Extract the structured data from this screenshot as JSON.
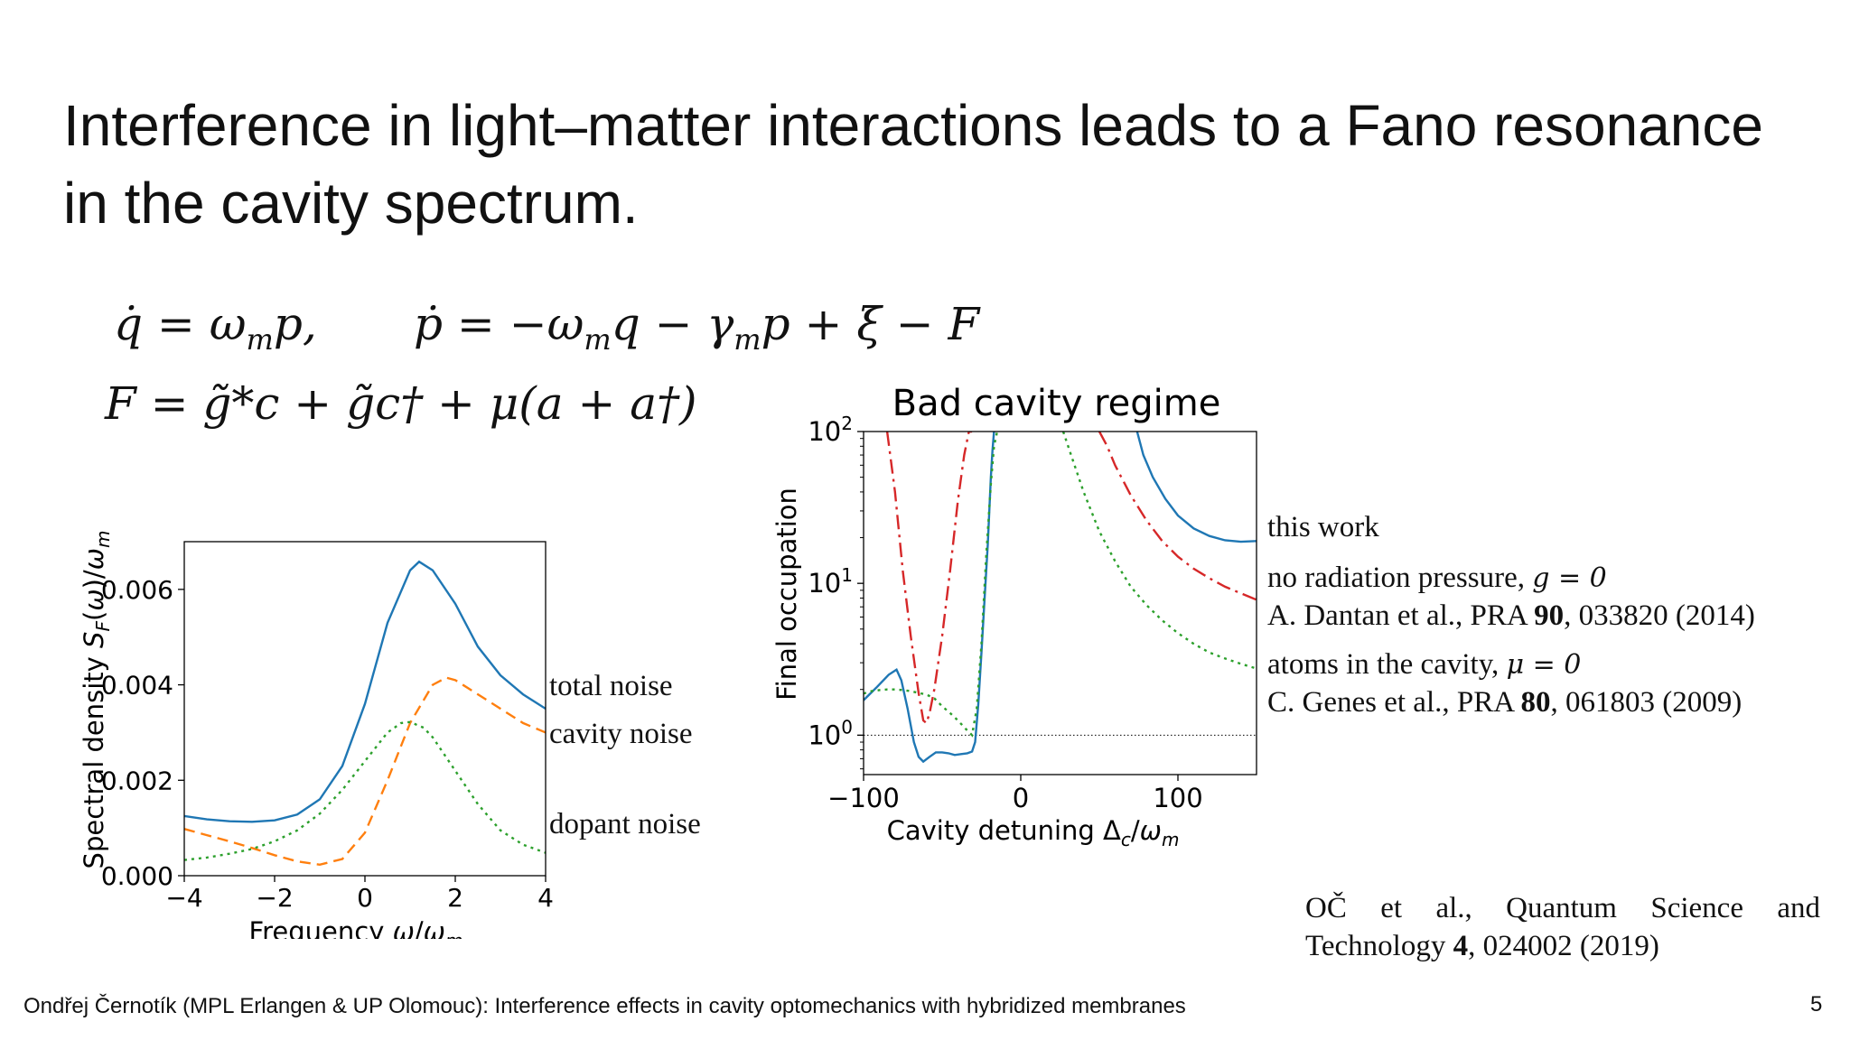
{
  "slide": {
    "title": "Interference in light–matter interactions leads to a Fano resonance in the cavity spectrum.",
    "equation_1a": "q̇ = ω",
    "equation_1a_sub": "m",
    "equation_1a_tail": "p,",
    "equation_1b": "ṗ = −ω",
    "equation_1b_sub": "m",
    "equation_1b_mid": "q − γ",
    "equation_1b_sub2": "m",
    "equation_1b_tail": "p + ξ − F",
    "equation_2": "F = g̃*c + g̃c† + μ(a + a†)",
    "footer": "Ondřej Černotík (MPL Erlangen & UP Olomouc): Interference effects in cavity optomechanics with hybridized membranes",
    "page_number": "5",
    "citation_a": "OČ et al., Quantum Science and Technology ",
    "citation_vol": "4",
    "citation_b": ", 024002 (2019)"
  },
  "left_legend": {
    "total": "total noise",
    "cavity": "cavity noise",
    "dopant": "dopant noise"
  },
  "right_legend": {
    "this_work": "this work",
    "no_rp": "no radiation pressure, ",
    "no_rp_math": "g = 0",
    "dantan_a": "A. Dantan et al., PRA ",
    "dantan_vol": "90",
    "dantan_b": ", 033820 (2014)",
    "atoms": "atoms in the cavity, ",
    "atoms_math": "μ = 0",
    "genes_a": "C. Genes et al., PRA ",
    "genes_vol": "80",
    "genes_b": ", 061803 (2009)"
  },
  "colors": {
    "blue": "#1f77b4",
    "orange": "#ff7f0e",
    "green": "#2ca02c",
    "red": "#d62728"
  },
  "chart_data": [
    {
      "type": "line",
      "title": "",
      "xlabel": "Frequency ω/ω_m",
      "ylabel": "Spectral density S_F(ω)/ω_m",
      "xlim": [
        -4,
        4
      ],
      "ylim": [
        0,
        0.007
      ],
      "x_ticks": [
        -4,
        -2,
        0,
        2,
        4
      ],
      "x_tick_labels": [
        "−4",
        "−2",
        "0",
        "2",
        "4"
      ],
      "y_ticks": [
        0,
        0.002,
        0.004,
        0.006
      ],
      "y_tick_labels": [
        "0.000",
        "0.002",
        "0.004",
        "0.006"
      ],
      "series": [
        {
          "name": "total noise",
          "color": "#1f77b4",
          "style": "solid",
          "x": [
            -4,
            -3.5,
            -3,
            -2.5,
            -2,
            -1.5,
            -1,
            -0.5,
            0,
            0.5,
            1,
            1.2,
            1.5,
            2,
            2.5,
            3,
            3.5,
            4
          ],
          "y": [
            0.00125,
            0.00118,
            0.00114,
            0.00113,
            0.00116,
            0.00128,
            0.0016,
            0.0023,
            0.0036,
            0.0053,
            0.0064,
            0.00658,
            0.0064,
            0.0057,
            0.0048,
            0.0042,
            0.0038,
            0.0035
          ]
        },
        {
          "name": "cavity noise",
          "color": "#ff7f0e",
          "style": "dashed",
          "x": [
            -4,
            -3.5,
            -3,
            -2.5,
            -2,
            -1.5,
            -1,
            -0.5,
            0,
            0.5,
            1,
            1.5,
            1.8,
            2,
            2.5,
            3,
            3.5,
            4
          ],
          "y": [
            0.00098,
            0.00085,
            0.00072,
            0.00058,
            0.00043,
            0.0003,
            0.00023,
            0.00035,
            0.0009,
            0.002,
            0.0032,
            0.004,
            0.00415,
            0.0041,
            0.0038,
            0.0035,
            0.0032,
            0.003
          ]
        },
        {
          "name": "dopant noise",
          "color": "#2ca02c",
          "style": "dotted",
          "x": [
            -4,
            -3.5,
            -3,
            -2.5,
            -2,
            -1.5,
            -1,
            -0.5,
            0,
            0.5,
            0.8,
            1,
            1.3,
            1.5,
            2,
            2.5,
            3,
            3.5,
            4
          ],
          "y": [
            0.00033,
            0.00038,
            0.00046,
            0.00056,
            0.00072,
            0.00095,
            0.0013,
            0.0018,
            0.0024,
            0.003,
            0.0032,
            0.00322,
            0.0031,
            0.0029,
            0.0022,
            0.0015,
            0.00095,
            0.00065,
            0.00048
          ]
        }
      ]
    },
    {
      "type": "line",
      "title": "Bad cavity regime",
      "xlabel": "Cavity detuning Δ_c/ω_m",
      "ylabel": "Final occupation",
      "xscale": "linear",
      "yscale": "log",
      "xlim": [
        -100,
        150
      ],
      "ylim": [
        0.55,
        100
      ],
      "x_ticks": [
        -100,
        0,
        100
      ],
      "x_tick_labels": [
        "−100",
        "0",
        "100"
      ],
      "y_ticks": [
        1,
        10,
        100
      ],
      "y_tick_labels": [
        "10",
        "10",
        "10"
      ],
      "y_tick_exponents": [
        "0",
        "1",
        "2"
      ],
      "reference_line_y": 1,
      "series": [
        {
          "name": "this work",
          "color": "#1f77b4",
          "style": "solid",
          "segments": [
            {
              "x": [
                -100,
                -92,
                -84,
                -79,
                -76,
                -72,
                -68,
                -65,
                -62,
                -58,
                -54,
                -50,
                -46,
                -42,
                -38,
                -34,
                -31,
                -29,
                -27,
                -25,
                -23,
                -21,
                -20,
                -19,
                -18,
                -17
              ],
              "y": [
                1.7,
                2.05,
                2.5,
                2.7,
                2.3,
                1.5,
                0.9,
                0.72,
                0.67,
                0.72,
                0.77,
                0.77,
                0.76,
                0.74,
                0.75,
                0.76,
                0.78,
                0.9,
                1.6,
                3.5,
                8,
                18,
                30,
                50,
                75,
                100
              ]
            },
            {
              "x": [
                74,
                78,
                84,
                92,
                100,
                110,
                120,
                130,
                140,
                150
              ],
              "y": [
                100,
                70,
                50,
                36,
                28,
                23,
                20.5,
                19.2,
                18.8,
                19
              ]
            }
          ]
        },
        {
          "name": "no radiation pressure, g = 0",
          "color": "#d62728",
          "style": "dashdot",
          "segments": [
            {
              "x": [
                -85,
                -80,
                -75,
                -70,
                -65,
                -62,
                -60,
                -58,
                -55,
                -50,
                -45,
                -40,
                -36,
                -33,
                -31
              ],
              "y": [
                100,
                40,
                12,
                4.5,
                1.9,
                1.25,
                1.2,
                1.4,
                2.0,
                4.5,
                12,
                35,
                70,
                100,
                100
              ]
            },
            {
              "x": [
                50,
                55,
                60,
                70,
                80,
                90,
                100,
                110,
                120,
                130,
                140,
                150
              ],
              "y": [
                100,
                80,
                60,
                38,
                26,
                19,
                15,
                12.5,
                10.8,
                9.5,
                8.6,
                7.8
              ]
            }
          ]
        },
        {
          "name": "atoms in the cavity, μ = 0",
          "color": "#2ca02c",
          "style": "dotted",
          "segments": [
            {
              "x": [
                -100,
                -95,
                -90,
                -85,
                -80,
                -75,
                -70,
                -65,
                -60,
                -55,
                -50,
                -45,
                -40,
                -35,
                -31,
                -28,
                -25,
                -22,
                -19,
                -17,
                -15
              ],
              "y": [
                1.88,
                1.95,
                1.98,
                2.0,
                2.0,
                1.98,
                1.95,
                1.9,
                1.85,
                1.75,
                1.55,
                1.4,
                1.25,
                1.1,
                1.0,
                1.5,
                4,
                15,
                45,
                80,
                100
              ]
            },
            {
              "x": [
                27,
                32,
                40,
                50,
                60,
                70,
                80,
                90,
                100,
                110,
                120,
                130,
                140,
                150
              ],
              "y": [
                100,
                70,
                40,
                22,
                14,
                9.5,
                7.2,
                5.7,
                4.7,
                4.0,
                3.5,
                3.2,
                2.95,
                2.75
              ]
            }
          ]
        }
      ]
    }
  ]
}
